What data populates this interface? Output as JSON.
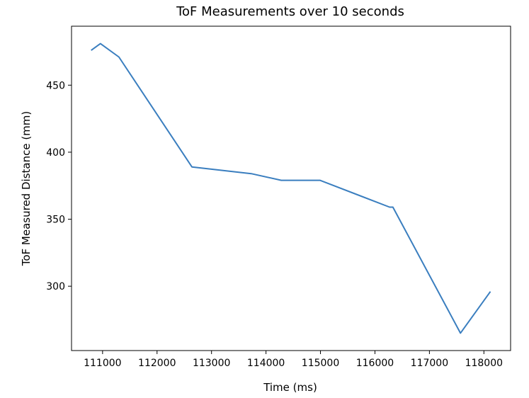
{
  "chart_data": {
    "type": "line",
    "title": "ToF Measurements over 10 seconds",
    "xlabel": "Time (ms)",
    "ylabel": "ToF Measured Distance (mm)",
    "xlim": [
      110430,
      118490
    ],
    "ylim": [
      252,
      494
    ],
    "xticks": [
      111000,
      112000,
      113000,
      114000,
      115000,
      116000,
      117000,
      118000
    ],
    "yticks": [
      300,
      350,
      400,
      450
    ],
    "grid": false,
    "line_color": "#3a7ebf",
    "series": [
      {
        "x": [
          110790,
          110960,
          111300,
          112640,
          113730,
          114280,
          114990,
          116270,
          116330,
          117570,
          118120
        ],
        "y": [
          476,
          481,
          471,
          389,
          384,
          379,
          379,
          359,
          359,
          265,
          296
        ]
      }
    ]
  }
}
